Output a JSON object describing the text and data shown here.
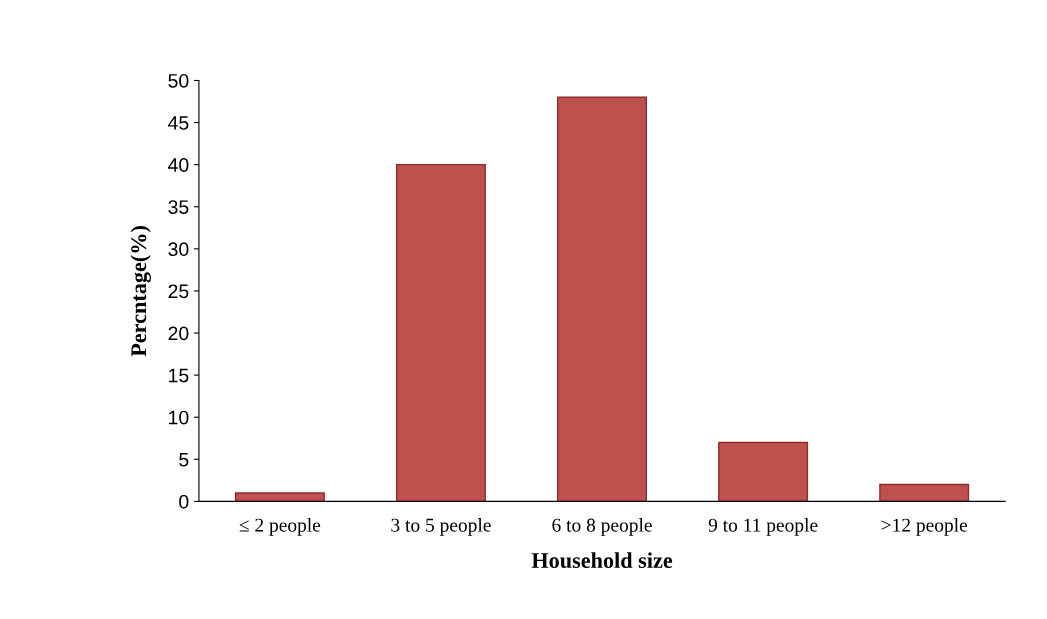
{
  "chart_data": {
    "type": "bar",
    "xlabel": "Household size",
    "ylabel": "Percntage(%)",
    "categories": [
      "≤ 2 people",
      "3 to 5 people",
      "6 to 8 people",
      "9 to 11 people",
      ">12 people"
    ],
    "values": [
      1,
      40,
      48,
      7,
      2
    ],
    "color": "#c0504d",
    "ylim": [
      0,
      50
    ],
    "yticks": [
      0,
      5,
      10,
      15,
      20,
      25,
      30,
      35,
      40,
      45,
      50
    ],
    "grid": false,
    "legend": false
  }
}
